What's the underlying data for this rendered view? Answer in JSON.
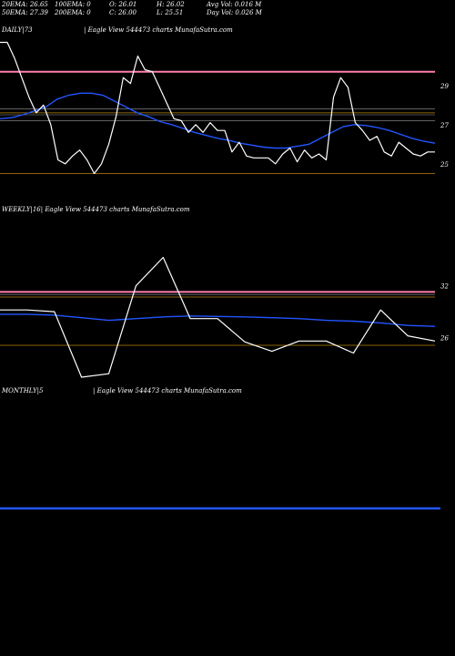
{
  "header": {
    "row1": [
      "20EMA: 26.65",
      "100EMA: 0",
      "O: 26.01",
      "H: 26.02",
      "Avg Vol: 0.016  M"
    ],
    "row2": [
      "50EMA: 27.39",
      "200EMA: 0",
      "C: 26.00",
      "L: 25.51",
      "Day Vol: 0.026  M"
    ]
  },
  "panels": {
    "daily_label": "DAILY|73",
    "daily_brand": "| Eagle   View  544473 charts MunafaSutra.com",
    "weekly_label": "WEEKLY|16| Eagle   View  544473 charts MunafaSutra.com",
    "monthly_label": "MONTHLY|5",
    "monthly_brand": "| Eagle   View  544473 charts MunafaSutra.com"
  },
  "colors": {
    "price": "#ffffff",
    "ema": "#2255ff",
    "resistance": "#ff7fb0",
    "support": "#b8860b",
    "grey": "#9a9a9a"
  },
  "chart_data": [
    {
      "type": "line",
      "name": "daily",
      "ylim": [
        23.5,
        31.5
      ],
      "yticks": [
        29,
        27,
        25
      ],
      "levels": {
        "pink": 29.7,
        "gold": [
          27.6,
          24.5
        ],
        "grey": [
          27.8,
          27.5,
          27.2
        ]
      },
      "price": [
        31.2,
        31.2,
        30.4,
        29.4,
        28.4,
        27.6,
        28.0,
        27.0,
        25.2,
        25.0,
        25.4,
        25.7,
        25.2,
        24.5,
        25.0,
        26.0,
        27.4,
        29.4,
        29.1,
        30.5,
        29.8,
        29.7,
        28.9,
        28.1,
        27.3,
        27.2,
        26.6,
        27.0,
        26.6,
        27.1,
        26.7,
        26.7,
        25.6,
        26.1,
        25.4,
        25.3,
        25.3,
        25.3,
        25.0,
        25.5,
        25.8,
        25.1,
        25.7,
        25.3,
        25.5,
        25.2,
        28.4,
        29.4,
        28.9,
        27.1,
        26.7,
        26.2,
        26.4,
        25.6,
        25.4,
        26.1,
        25.8,
        25.5,
        25.4,
        25.6,
        25.6
      ],
      "ema": [
        27.3,
        27.35,
        27.5,
        27.7,
        27.9,
        28.3,
        28.5,
        28.6,
        28.6,
        28.5,
        28.2,
        27.9,
        27.6,
        27.4,
        27.15,
        27.0,
        26.8,
        26.6,
        26.45,
        26.3,
        26.2,
        26.05,
        25.95,
        25.85,
        25.8,
        25.8,
        25.9,
        26.0,
        26.3,
        26.6,
        26.9,
        27.0,
        26.95,
        26.85,
        26.7,
        26.5,
        26.3,
        26.15,
        26.05
      ]
    },
    {
      "type": "line",
      "name": "weekly",
      "ylim": [
        19.5,
        40
      ],
      "yticks": [
        32,
        26
      ],
      "levels": {
        "pink": 31.3,
        "gold": [
          30.7,
          25.1
        ],
        "grey": [
          31.0
        ]
      },
      "price": [
        29.2,
        29.2,
        29.0,
        21.4,
        21.8,
        32.0,
        35.3,
        28.2,
        28.2,
        25.5,
        24.4,
        25.6,
        25.6,
        24.2,
        29.2,
        26.2,
        25.6
      ],
      "ema": [
        28.7,
        28.7,
        28.6,
        28.3,
        28.0,
        28.2,
        28.4,
        28.5,
        28.45,
        28.4,
        28.3,
        28.2,
        28.0,
        27.9,
        27.7,
        27.4,
        27.3
      ]
    },
    {
      "type": "line",
      "name": "monthly",
      "ylim": [
        0,
        10
      ],
      "yticks": [],
      "ema": [
        5,
        5
      ]
    }
  ]
}
